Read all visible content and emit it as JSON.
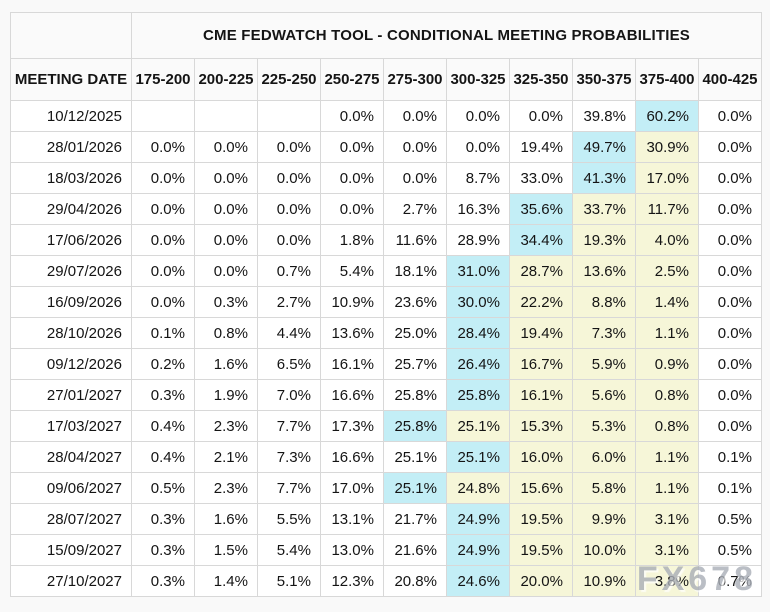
{
  "colors": {
    "max_cell": "#c3eef6",
    "tail_cell": "#f6f6d8",
    "border": "#d8d8d8",
    "cell_bg": "#ffffff",
    "header_bg": "#fafafa",
    "page_bg": "#f9f9f9",
    "text": "#141414",
    "watermark": "#a9aeb7"
  },
  "watermark": {
    "text": "FX678"
  },
  "chart_data": {
    "type": "table",
    "title": "CME FEDWATCH TOOL - CONDITIONAL MEETING PROBABILITIES",
    "columns": [
      "MEETING DATE",
      "175-200",
      "200-225",
      "225-250",
      "250-275",
      "275-300",
      "300-325",
      "325-350",
      "350-375",
      "375-400",
      "400-425"
    ],
    "highlight_legend": {
      "max": "highest probability cell in row (cyan)",
      "tail": "cells to the right of the max (pale yellow)"
    },
    "rows": [
      {
        "date": "10/12/2025",
        "values": [
          "",
          "",
          "",
          "0.0%",
          "0.0%",
          "0.0%",
          "0.0%",
          "39.8%",
          "60.2%",
          "0.0%"
        ],
        "styles": [
          "",
          "",
          "",
          "",
          "",
          "",
          "",
          "",
          "max",
          ""
        ]
      },
      {
        "date": "28/01/2026",
        "values": [
          "0.0%",
          "0.0%",
          "0.0%",
          "0.0%",
          "0.0%",
          "0.0%",
          "19.4%",
          "49.7%",
          "30.9%",
          "0.0%"
        ],
        "styles": [
          "",
          "",
          "",
          "",
          "",
          "",
          "",
          "max",
          "tail",
          ""
        ]
      },
      {
        "date": "18/03/2026",
        "values": [
          "0.0%",
          "0.0%",
          "0.0%",
          "0.0%",
          "0.0%",
          "8.7%",
          "33.0%",
          "41.3%",
          "17.0%",
          "0.0%"
        ],
        "styles": [
          "",
          "",
          "",
          "",
          "",
          "",
          "",
          "max",
          "tail",
          ""
        ]
      },
      {
        "date": "29/04/2026",
        "values": [
          "0.0%",
          "0.0%",
          "0.0%",
          "0.0%",
          "2.7%",
          "16.3%",
          "35.6%",
          "33.7%",
          "11.7%",
          "0.0%"
        ],
        "styles": [
          "",
          "",
          "",
          "",
          "",
          "",
          "max",
          "tail",
          "tail",
          ""
        ]
      },
      {
        "date": "17/06/2026",
        "values": [
          "0.0%",
          "0.0%",
          "0.0%",
          "1.8%",
          "11.6%",
          "28.9%",
          "34.4%",
          "19.3%",
          "4.0%",
          "0.0%"
        ],
        "styles": [
          "",
          "",
          "",
          "",
          "",
          "",
          "max",
          "tail",
          "tail",
          ""
        ]
      },
      {
        "date": "29/07/2026",
        "values": [
          "0.0%",
          "0.0%",
          "0.7%",
          "5.4%",
          "18.1%",
          "31.0%",
          "28.7%",
          "13.6%",
          "2.5%",
          "0.0%"
        ],
        "styles": [
          "",
          "",
          "",
          "",
          "",
          "max",
          "tail",
          "tail",
          "tail",
          ""
        ]
      },
      {
        "date": "16/09/2026",
        "values": [
          "0.0%",
          "0.3%",
          "2.7%",
          "10.9%",
          "23.6%",
          "30.0%",
          "22.2%",
          "8.8%",
          "1.4%",
          "0.0%"
        ],
        "styles": [
          "",
          "",
          "",
          "",
          "",
          "max",
          "tail",
          "tail",
          "tail",
          ""
        ]
      },
      {
        "date": "28/10/2026",
        "values": [
          "0.1%",
          "0.8%",
          "4.4%",
          "13.6%",
          "25.0%",
          "28.4%",
          "19.4%",
          "7.3%",
          "1.1%",
          "0.0%"
        ],
        "styles": [
          "",
          "",
          "",
          "",
          "",
          "max",
          "tail",
          "tail",
          "tail",
          ""
        ]
      },
      {
        "date": "09/12/2026",
        "values": [
          "0.2%",
          "1.6%",
          "6.5%",
          "16.1%",
          "25.7%",
          "26.4%",
          "16.7%",
          "5.9%",
          "0.9%",
          "0.0%"
        ],
        "styles": [
          "",
          "",
          "",
          "",
          "",
          "max",
          "tail",
          "tail",
          "tail",
          ""
        ]
      },
      {
        "date": "27/01/2027",
        "values": [
          "0.3%",
          "1.9%",
          "7.0%",
          "16.6%",
          "25.8%",
          "25.8%",
          "16.1%",
          "5.6%",
          "0.8%",
          "0.0%"
        ],
        "styles": [
          "",
          "",
          "",
          "",
          "",
          "max",
          "tail",
          "tail",
          "tail",
          ""
        ]
      },
      {
        "date": "17/03/2027",
        "values": [
          "0.4%",
          "2.3%",
          "7.7%",
          "17.3%",
          "25.8%",
          "25.1%",
          "15.3%",
          "5.3%",
          "0.8%",
          "0.0%"
        ],
        "styles": [
          "",
          "",
          "",
          "",
          "max",
          "tail",
          "tail",
          "tail",
          "tail",
          ""
        ]
      },
      {
        "date": "28/04/2027",
        "values": [
          "0.4%",
          "2.1%",
          "7.3%",
          "16.6%",
          "25.1%",
          "25.1%",
          "16.0%",
          "6.0%",
          "1.1%",
          "0.1%"
        ],
        "styles": [
          "",
          "",
          "",
          "",
          "",
          "max",
          "tail",
          "tail",
          "tail",
          ""
        ]
      },
      {
        "date": "09/06/2027",
        "values": [
          "0.5%",
          "2.3%",
          "7.7%",
          "17.0%",
          "25.1%",
          "24.8%",
          "15.6%",
          "5.8%",
          "1.1%",
          "0.1%"
        ],
        "styles": [
          "",
          "",
          "",
          "",
          "max",
          "tail",
          "tail",
          "tail",
          "tail",
          ""
        ]
      },
      {
        "date": "28/07/2027",
        "values": [
          "0.3%",
          "1.6%",
          "5.5%",
          "13.1%",
          "21.7%",
          "24.9%",
          "19.5%",
          "9.9%",
          "3.1%",
          "0.5%"
        ],
        "styles": [
          "",
          "",
          "",
          "",
          "",
          "max",
          "tail",
          "tail",
          "tail",
          ""
        ]
      },
      {
        "date": "15/09/2027",
        "values": [
          "0.3%",
          "1.5%",
          "5.4%",
          "13.0%",
          "21.6%",
          "24.9%",
          "19.5%",
          "10.0%",
          "3.1%",
          "0.5%"
        ],
        "styles": [
          "",
          "",
          "",
          "",
          "",
          "max",
          "tail",
          "tail",
          "tail",
          ""
        ]
      },
      {
        "date": "27/10/2027",
        "values": [
          "0.3%",
          "1.4%",
          "5.1%",
          "12.3%",
          "20.8%",
          "24.6%",
          "20.0%",
          "10.9%",
          "3.8%",
          "0.7%"
        ],
        "styles": [
          "",
          "",
          "",
          "",
          "",
          "max",
          "tail",
          "tail",
          "tail",
          ""
        ]
      }
    ]
  }
}
